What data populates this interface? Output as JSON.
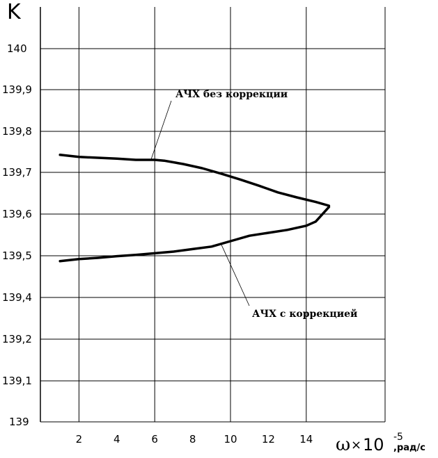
{
  "chart_data": {
    "type": "line",
    "ylabel": "K",
    "xlabel": {
      "symbol": "ω",
      "times": "×",
      "base": "10",
      "exponent": "-5",
      "unit": ",рад/с"
    },
    "x_ticks": [
      "2",
      "4",
      "6",
      "8",
      "10",
      "12",
      "14"
    ],
    "y_ticks": [
      "140",
      "139,9",
      "139,8",
      "139,7",
      "139,6",
      "139,5",
      "139,4",
      "139,2",
      "139,1",
      "139"
    ],
    "grid": true,
    "series": [
      {
        "name": "АЧХ без коррекции",
        "x": [
          1.0,
          2,
          3,
          4,
          5,
          6,
          6.5,
          7.5,
          8.5,
          9.5,
          10.5,
          11.5,
          12.5,
          13.5,
          14.5,
          15.2
        ],
        "y": [
          139.742,
          139.737,
          139.735,
          139.733,
          139.73,
          139.73,
          139.728,
          139.72,
          139.71,
          139.697,
          139.683,
          139.668,
          139.652,
          139.64,
          139.629,
          139.62
        ]
      },
      {
        "name": "АЧХ с коррекцией",
        "x": [
          1.0,
          2,
          3,
          4,
          5,
          6,
          7,
          8,
          9,
          10,
          11,
          12,
          13,
          14,
          14.5,
          15.2
        ],
        "y": [
          139.487,
          139.492,
          139.495,
          139.499,
          139.502,
          139.506,
          139.51,
          139.516,
          139.522,
          139.535,
          139.548,
          139.555,
          139.562,
          139.572,
          139.582,
          139.617
        ]
      }
    ],
    "annotations": [
      {
        "text": "АЧХ без коррекции",
        "series": 0,
        "at_x": 5.8
      },
      {
        "text": "АЧХ с коррекцией",
        "series": 1,
        "at_x": 9.5
      }
    ]
  }
}
